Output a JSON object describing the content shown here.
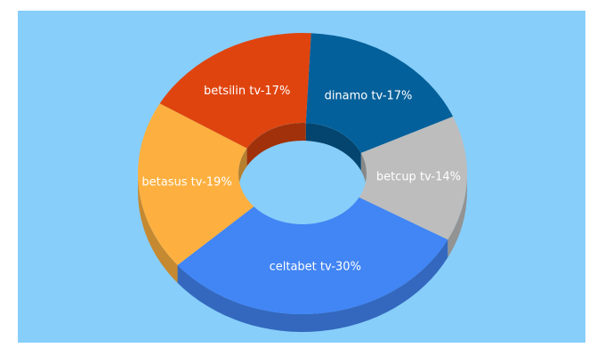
{
  "chart_data": {
    "type": "donut3d",
    "values": [
      17,
      14,
      30,
      19,
      17
    ],
    "value_labels": [
      "dinamo tv-17%",
      "betcup tv-14%",
      "celtabet tv-30%",
      "betasus tv-19%",
      "betsilin tv-17%"
    ],
    "colors": [
      "#04609a",
      "#bdbdbd",
      "#4285f4",
      "#fdb03f",
      "#e0440e"
    ]
  }
}
